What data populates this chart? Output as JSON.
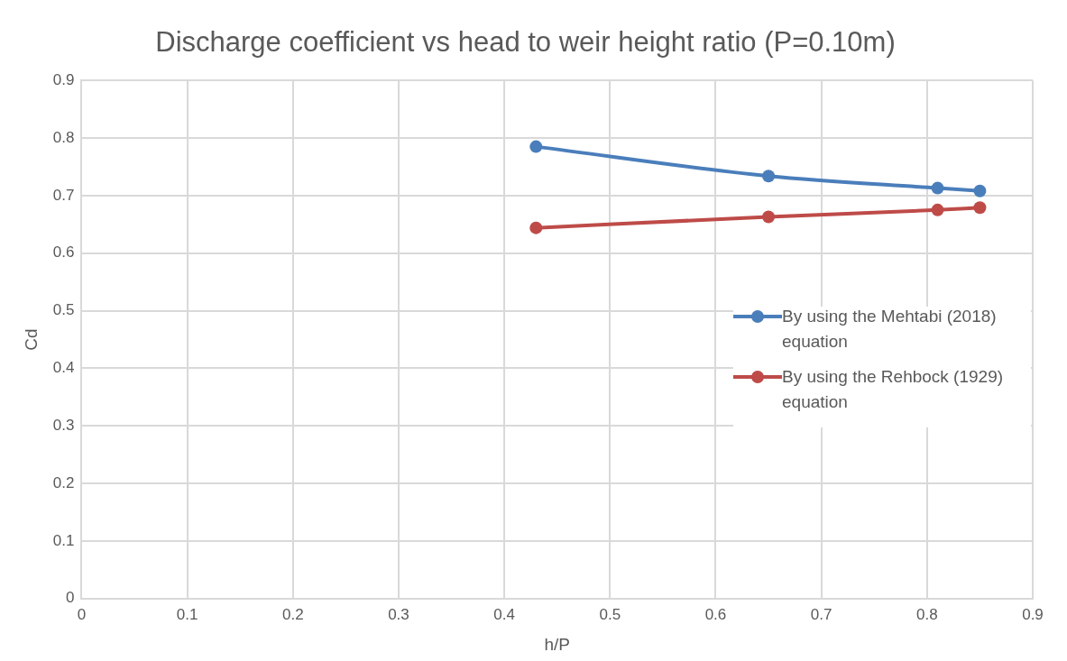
{
  "chart_data": {
    "type": "line",
    "title": "Discharge coefficient vs head to weir height ratio (P=0.10m)",
    "xlabel": "h/P",
    "ylabel": "Cd",
    "x": [
      0.43,
      0.65,
      0.81,
      0.85
    ],
    "series": [
      {
        "name": "By using the Mehtabi (2018) equation",
        "color": "#4a7ebb",
        "values": [
          0.785,
          0.734,
          0.713,
          0.708
        ]
      },
      {
        "name": "By using the Rehbock (1929) equation",
        "color": "#be4b48",
        "values": [
          0.644,
          0.663,
          0.675,
          0.679
        ]
      }
    ],
    "xlim": [
      0,
      0.9
    ],
    "xticks": [
      0,
      0.1,
      0.2,
      0.3,
      0.4,
      0.5,
      0.6,
      0.7,
      0.8,
      0.9
    ],
    "ylim": [
      0,
      0.9
    ],
    "yticks": [
      0,
      0.1,
      0.2,
      0.3,
      0.4,
      0.5,
      0.6,
      0.7,
      0.8,
      0.9
    ],
    "grid": true,
    "legend": "right",
    "marker": "circle",
    "line_style": "solid"
  }
}
